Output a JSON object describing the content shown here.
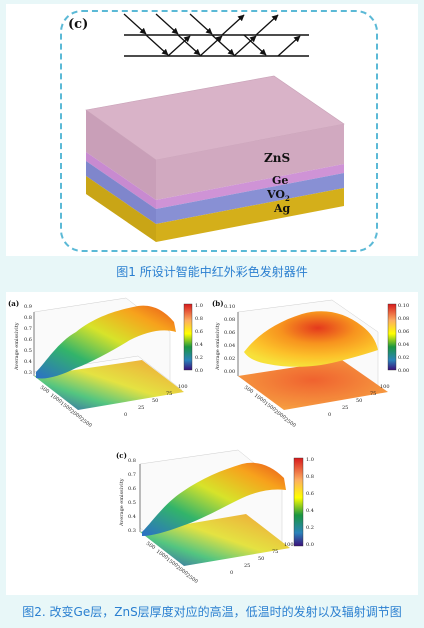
{
  "fig1": {
    "panel_label": "(c)",
    "layers": [
      "ZnS",
      "Ge",
      "VO",
      "2",
      "Ag"
    ],
    "caption": "图1 所设计智能中红外彩色发射器件"
  },
  "fig2": {
    "plot_a": {
      "label": "(a)",
      "zaxis": "Average emissivity",
      "z_ticks": [
        "0.9",
        "0.8",
        "0.7",
        "0.6",
        "0.5",
        "0.4",
        "0.3"
      ],
      "cb_ticks": [
        "1.0",
        "0.8",
        "0.6",
        "0.4",
        "0.2",
        "0.0"
      ],
      "x_ticks": [
        "500",
        "1000",
        "1500",
        "2000",
        "2500"
      ],
      "y_ticks": [
        "0",
        "25",
        "50",
        "75",
        "100"
      ]
    },
    "plot_b": {
      "label": "(b)",
      "zaxis": "Average emissivity",
      "z_ticks": [
        "0.10",
        "0.08",
        "0.06",
        "0.04",
        "0.02",
        "0.00"
      ],
      "cb_ticks": [
        "0.10",
        "0.08",
        "0.06",
        "0.04",
        "0.02",
        "0.00"
      ],
      "x_ticks": [
        "500",
        "1000",
        "1500",
        "2000",
        "2500"
      ],
      "y_ticks": [
        "0",
        "25",
        "50",
        "75",
        "100"
      ]
    },
    "plot_c": {
      "label": "(c)",
      "zaxis": "Average emissivity",
      "z_ticks": [
        "0.8",
        "0.7",
        "0.6",
        "0.5",
        "0.4",
        "0.3"
      ],
      "cb_ticks": [
        "1.0",
        "0.8",
        "0.6",
        "0.4",
        "0.2",
        "0.0"
      ],
      "x_ticks": [
        "500",
        "1000",
        "1500",
        "2000",
        "2500"
      ],
      "y_ticks": [
        "0",
        "25",
        "50",
        "75",
        "100"
      ]
    },
    "caption": "图2. 改变Ge层，ZnS层厚度对应的高温，低温时的发射以及辐射调节图"
  }
}
